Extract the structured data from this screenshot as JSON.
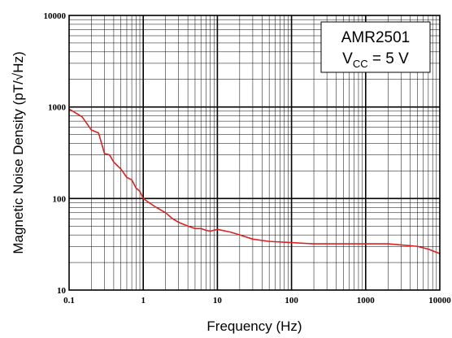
{
  "chart_data": {
    "type": "line",
    "x_scale": "log",
    "y_scale": "log",
    "xlim": [
      0.1,
      10000
    ],
    "ylim": [
      10,
      10000
    ],
    "grid": true,
    "xlabel": "Frequency (Hz)",
    "ylabel": "Magnetic Noise Density (pT/√Hz)",
    "x_ticks": [
      "0.1",
      "1",
      "10",
      "100",
      "1000",
      "10000"
    ],
    "y_ticks": [
      "10",
      "100",
      "1000",
      "10000"
    ],
    "legend": {
      "line1": "AMR2501",
      "line2_prefix": "V",
      "line2_sub": "CC",
      "line2_suffix": " = 5 V",
      "placement": "top-right"
    },
    "series": [
      {
        "color": "#e02020",
        "x": [
          0.1,
          0.12,
          0.15,
          0.2,
          0.25,
          0.3,
          0.35,
          0.4,
          0.5,
          0.6,
          0.7,
          0.8,
          0.9,
          1,
          1.2,
          1.5,
          2,
          2.5,
          3,
          4,
          5,
          6,
          7,
          8,
          10,
          15,
          20,
          30,
          50,
          100,
          200,
          500,
          1000,
          2000,
          5000,
          7000,
          10000
        ],
        "y": [
          950,
          870,
          780,
          560,
          520,
          310,
          300,
          250,
          210,
          170,
          160,
          130,
          120,
          100,
          90,
          80,
          70,
          60,
          55,
          50,
          47,
          47,
          45,
          44,
          46,
          43,
          40,
          36,
          34,
          33,
          32,
          32,
          32,
          32,
          30,
          28,
          25
        ]
      }
    ]
  }
}
